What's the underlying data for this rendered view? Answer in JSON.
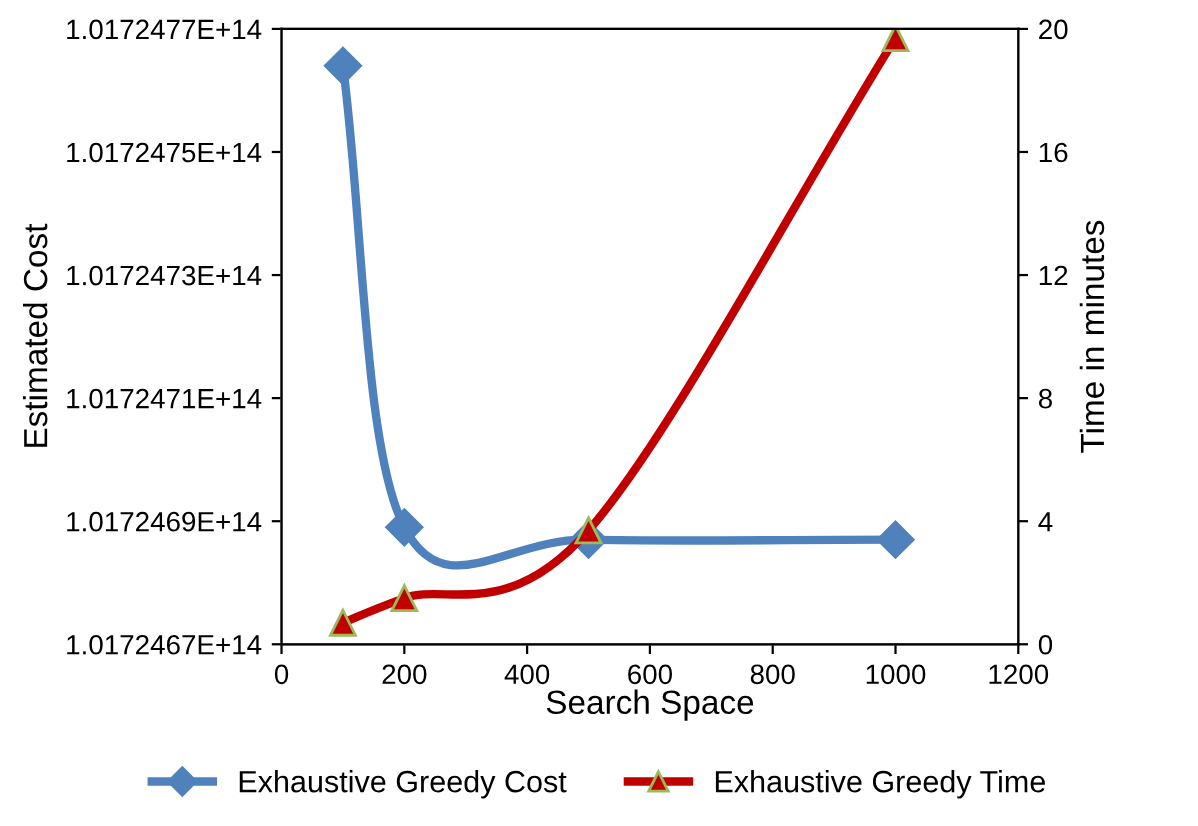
{
  "chart_data": {
    "type": "line",
    "xlabel": "Search Space",
    "ylabel": "Estimated Cost",
    "y2label": "Time in minutes",
    "x": [
      100,
      200,
      500,
      1000
    ],
    "series": [
      {
        "name": "Exhaustive Greedy Cost",
        "color": "#4f81bd",
        "marker": "diamond",
        "values": [
          101724764000000,
          101724689000000,
          101724687000000,
          101724687000000
        ]
      },
      {
        "name": "Exhaustive Greedy Time",
        "color": "#c00000",
        "marker": "triangle",
        "axis": "y2",
        "values": [
          0.7,
          1.5,
          3.7,
          19.7
        ]
      }
    ],
    "xlim": [
      0,
      1200
    ],
    "xticks": [
      0,
      200,
      400,
      600,
      800,
      1000,
      1200
    ],
    "ylim": [
      101724670000000,
      101724770000000
    ],
    "yticks": [
      {
        "value": 101724670000000,
        "label": "1.0172467E+14"
      },
      {
        "value": 101724690000000,
        "label": "1.0172469E+14"
      },
      {
        "value": 101724710000000,
        "label": "1.0172471E+14"
      },
      {
        "value": 101724730000000,
        "label": "1.0172473E+14"
      },
      {
        "value": 101724750000000,
        "label": "1.0172475E+14"
      },
      {
        "value": 101724770000000,
        "label": "1.0172477E+14"
      }
    ],
    "y2lim": [
      0,
      20
    ],
    "y2ticks": [
      0,
      4,
      8,
      12,
      16,
      20
    ],
    "grid": false,
    "legend": "bottom"
  }
}
